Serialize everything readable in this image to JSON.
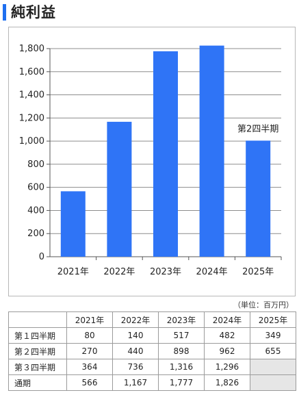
{
  "title": "純利益",
  "unit_note": "（単位：百万円）",
  "chart_data": {
    "type": "bar",
    "categories": [
      "2021年",
      "2022年",
      "2023年",
      "2024年",
      "2025年"
    ],
    "values": [
      566,
      1167,
      1777,
      1826,
      1004
    ],
    "ylim": [
      0,
      1800
    ],
    "yticks": [
      "0",
      "200",
      "400",
      "600",
      "800",
      "1,000",
      "1,200",
      "1,400",
      "1,600",
      "1,800"
    ],
    "grid": true,
    "bar_color": "#2f74f6",
    "annotation": "第2四半期"
  },
  "table": {
    "corner": "",
    "columns": [
      "2021年",
      "2022年",
      "2023年",
      "2024年",
      "2025年"
    ],
    "rows": [
      {
        "label": "第１四半期",
        "values": [
          "80",
          "140",
          "517",
          "482",
          "349"
        ]
      },
      {
        "label": "第２四半期",
        "values": [
          "270",
          "440",
          "898",
          "962",
          "655"
        ]
      },
      {
        "label": "第３四半期",
        "values": [
          "364",
          "736",
          "1,316",
          "1,296",
          ""
        ]
      },
      {
        "label": "通期",
        "values": [
          "566",
          "1,167",
          "1,777",
          "1,826",
          ""
        ]
      }
    ]
  }
}
